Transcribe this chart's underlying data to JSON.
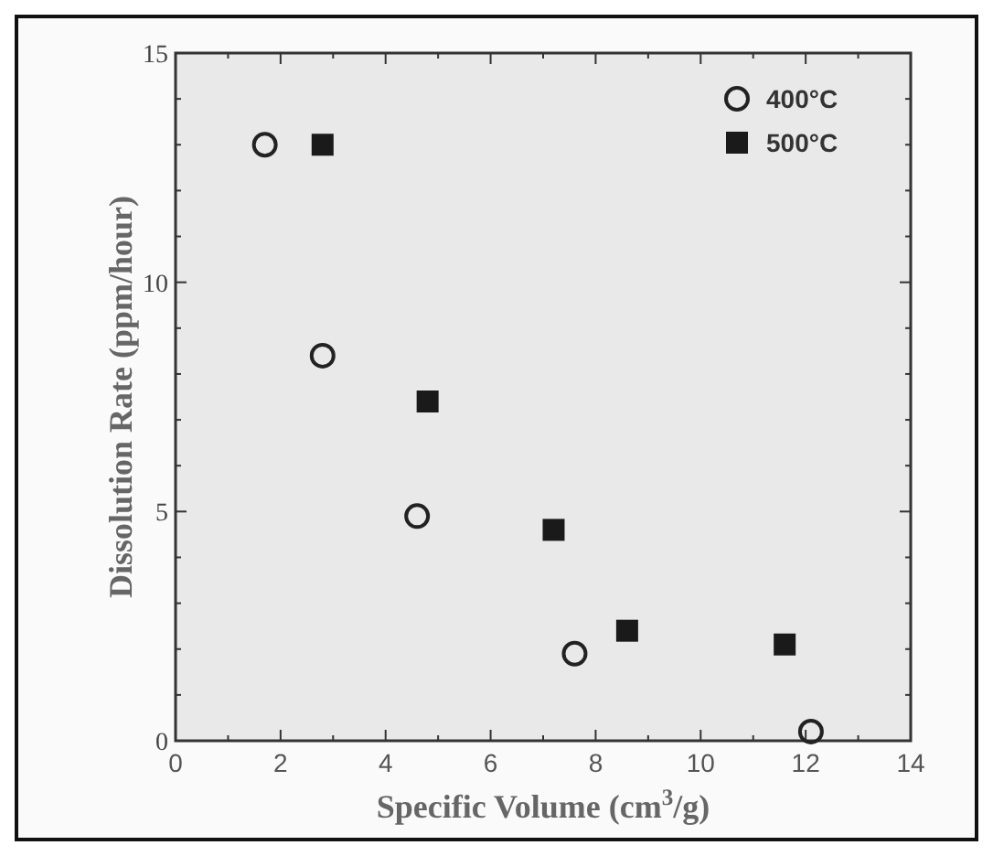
{
  "chart_data": {
    "type": "scatter",
    "xlabel": "Specific Volume (cm$^{3}$/g)",
    "ylabel": "Dissolution Rate (ppm/hour)",
    "xlim": [
      0,
      14
    ],
    "ylim": [
      0,
      15
    ],
    "xticks": [
      0,
      2,
      4,
      6,
      8,
      10,
      12,
      14
    ],
    "yticks": [
      0,
      5,
      10,
      15
    ],
    "legend": "top right",
    "grid": false,
    "series": [
      {
        "name": "400°C",
        "color": "#222222",
        "marker": "circle",
        "x": [
          1.7,
          2.8,
          4.6,
          7.6,
          12.1
        ],
        "values": [
          13.0,
          8.4,
          4.9,
          1.9,
          0.2
        ]
      },
      {
        "name": "500°C",
        "color": "#1a1a1a",
        "marker": "square",
        "x": [
          2.8,
          4.8,
          7.2,
          8.6,
          11.6
        ],
        "values": [
          13.0,
          7.4,
          4.6,
          2.4,
          2.1
        ]
      }
    ]
  }
}
